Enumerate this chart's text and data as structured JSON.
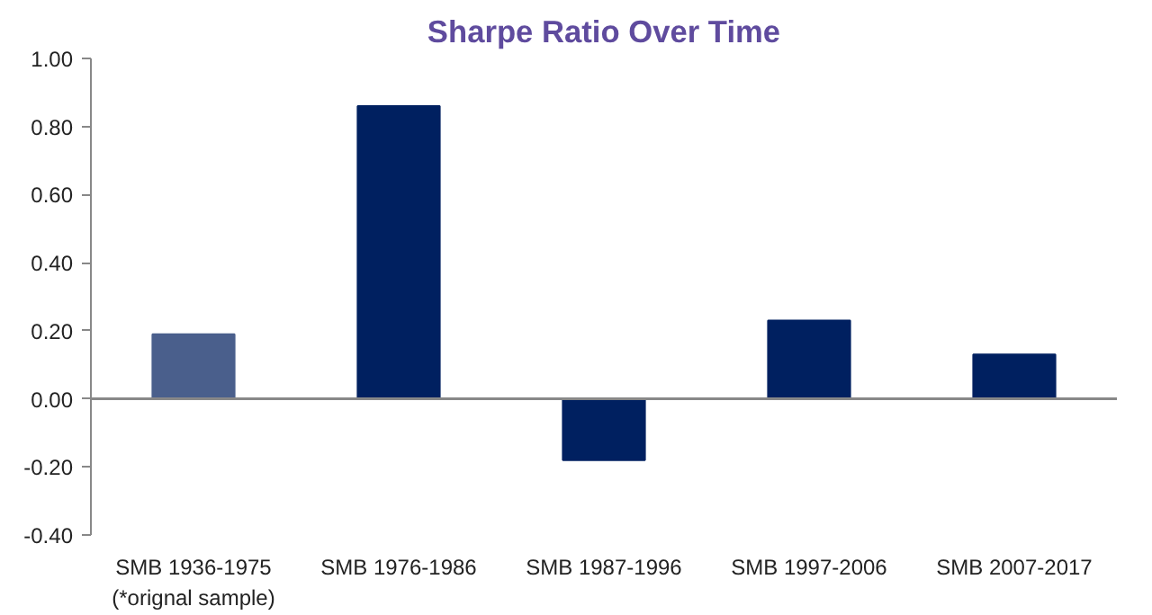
{
  "chart_data": {
    "type": "bar",
    "title": "Sharpe Ratio Over Time",
    "categories": [
      "SMB 1936-1975\n(*orignal sample)",
      "SMB 1976-1986",
      "SMB 1987-1996",
      "SMB 1997-2006",
      "SMB 2007-2017"
    ],
    "values": [
      0.19,
      0.86,
      -0.18,
      0.23,
      0.13
    ],
    "colors": [
      "#4a5f8c",
      "#002060",
      "#002060",
      "#002060",
      "#002060"
    ],
    "ylim": [
      -0.4,
      1.0
    ],
    "yticks": [
      {
        "value": -0.4,
        "label": "-0.40"
      },
      {
        "value": -0.2,
        "label": "-0.20"
      },
      {
        "value": 0,
        "label": "0.00"
      },
      {
        "value": 0.2,
        "label": "0.20"
      },
      {
        "value": 0.4,
        "label": "0.40"
      },
      {
        "value": 0.6,
        "label": "0.60"
      },
      {
        "value": 0.8,
        "label": "0.80"
      },
      {
        "value": 1.0,
        "label": "1.00"
      }
    ],
    "ref_lines": [
      {
        "axis": "y",
        "value": 0,
        "color": "#888888"
      }
    ]
  }
}
